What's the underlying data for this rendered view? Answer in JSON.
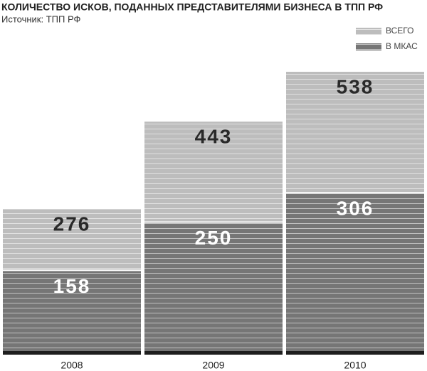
{
  "chart_data": {
    "type": "bar",
    "title": "КОЛИЧЕСТВО ИСКОВ, ПОДАННЫХ ПРЕДСТАВИТЕЛЯМИ БИЗНЕСА В ТПП РФ",
    "subtitle": "Источник: ТПП РФ",
    "categories": [
      "2008",
      "2009",
      "2010"
    ],
    "series": [
      {
        "name": "ВСЕГО",
        "color": "#bdbdbd",
        "values": [
          276,
          443,
          538
        ]
      },
      {
        "name": "В МКАС",
        "color": "#767676",
        "values": [
          158,
          250,
          306
        ]
      }
    ],
    "legend": "top-right"
  }
}
